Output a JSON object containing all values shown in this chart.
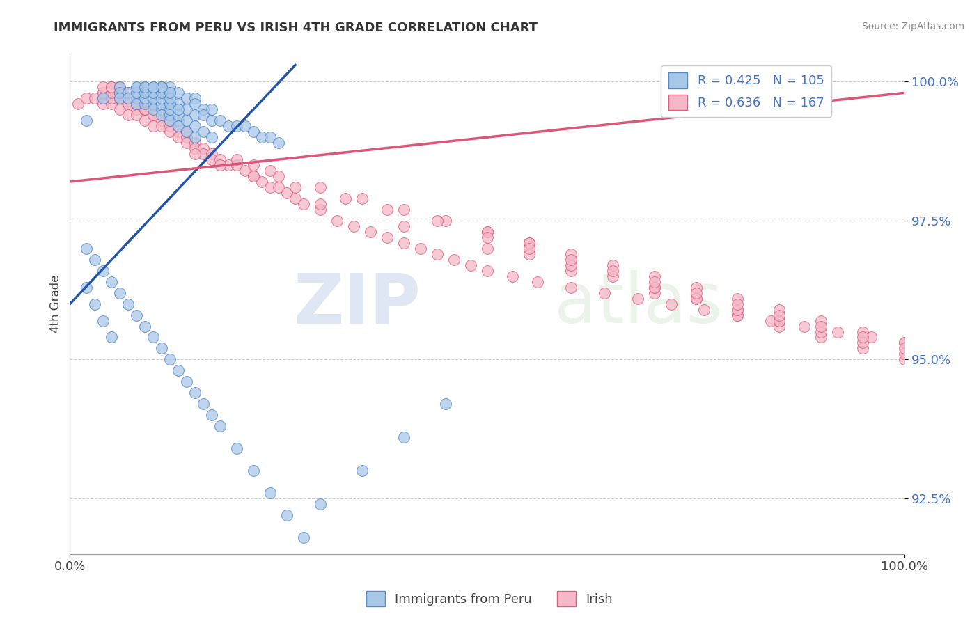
{
  "title": "IMMIGRANTS FROM PERU VS IRISH 4TH GRADE CORRELATION CHART",
  "source": "Source: ZipAtlas.com",
  "ylabel": "4th Grade",
  "xmin": 0.0,
  "xmax": 1.0,
  "ymin": 0.915,
  "ymax": 1.005,
  "yticks": [
    0.925,
    0.95,
    0.975,
    1.0
  ],
  "ytick_labels": [
    "92.5%",
    "95.0%",
    "97.5%",
    "100.0%"
  ],
  "blue_r": "0.425",
  "blue_n": "105",
  "pink_r": "0.636",
  "pink_n": "167",
  "blue_color": "#a8c8e8",
  "pink_color": "#f4b8c8",
  "blue_edge_color": "#5588cc",
  "pink_edge_color": "#e06080",
  "blue_line_color": "#2255aa",
  "pink_line_color": "#dd5577",
  "legend_label_blue": "Immigrants from Peru",
  "legend_label_pink": "Irish",
  "watermark_zip": "ZIP",
  "watermark_atlas": "atlas",
  "background_color": "#ffffff",
  "blue_scatter_x": [
    0.02,
    0.04,
    0.06,
    0.06,
    0.07,
    0.08,
    0.08,
    0.09,
    0.09,
    0.1,
    0.1,
    0.1,
    0.11,
    0.11,
    0.12,
    0.12,
    0.12,
    0.13,
    0.13,
    0.14,
    0.14,
    0.15,
    0.15,
    0.15,
    0.16,
    0.16,
    0.17,
    0.17,
    0.18,
    0.19,
    0.2,
    0.21,
    0.22,
    0.23,
    0.24,
    0.25,
    0.06,
    0.07,
    0.08,
    0.09,
    0.1,
    0.1,
    0.11,
    0.11,
    0.12,
    0.12,
    0.13,
    0.13,
    0.14,
    0.15,
    0.08,
    0.09,
    0.1,
    0.11,
    0.12,
    0.13,
    0.14,
    0.15,
    0.16,
    0.17,
    0.08,
    0.09,
    0.1,
    0.11,
    0.12,
    0.13,
    0.09,
    0.1,
    0.11,
    0.12,
    0.1,
    0.11,
    0.12,
    0.1,
    0.11,
    0.1,
    0.02,
    0.03,
    0.04,
    0.05,
    0.06,
    0.07,
    0.08,
    0.09,
    0.1,
    0.11,
    0.12,
    0.13,
    0.14,
    0.15,
    0.16,
    0.17,
    0.18,
    0.2,
    0.22,
    0.24,
    0.26,
    0.28,
    0.3,
    0.35,
    0.4,
    0.45,
    0.02,
    0.03,
    0.04,
    0.05
  ],
  "blue_scatter_y": [
    0.993,
    0.997,
    0.999,
    0.998,
    0.998,
    0.999,
    0.997,
    0.999,
    0.998,
    0.999,
    0.998,
    0.997,
    0.999,
    0.998,
    0.999,
    0.998,
    0.996,
    0.998,
    0.996,
    0.997,
    0.995,
    0.997,
    0.996,
    0.994,
    0.995,
    0.994,
    0.995,
    0.993,
    0.993,
    0.992,
    0.992,
    0.992,
    0.991,
    0.99,
    0.99,
    0.989,
    0.997,
    0.997,
    0.996,
    0.996,
    0.996,
    0.995,
    0.995,
    0.994,
    0.994,
    0.993,
    0.993,
    0.992,
    0.991,
    0.99,
    0.998,
    0.997,
    0.997,
    0.996,
    0.995,
    0.994,
    0.993,
    0.992,
    0.991,
    0.99,
    0.999,
    0.998,
    0.998,
    0.997,
    0.996,
    0.995,
    0.999,
    0.999,
    0.998,
    0.997,
    0.999,
    0.999,
    0.998,
    0.999,
    0.999,
    0.999,
    0.97,
    0.968,
    0.966,
    0.964,
    0.962,
    0.96,
    0.958,
    0.956,
    0.954,
    0.952,
    0.95,
    0.948,
    0.946,
    0.944,
    0.942,
    0.94,
    0.938,
    0.934,
    0.93,
    0.926,
    0.922,
    0.918,
    0.924,
    0.93,
    0.936,
    0.942,
    0.963,
    0.96,
    0.957,
    0.954
  ],
  "pink_scatter_x": [
    0.01,
    0.02,
    0.03,
    0.04,
    0.04,
    0.05,
    0.05,
    0.06,
    0.06,
    0.07,
    0.07,
    0.08,
    0.08,
    0.09,
    0.09,
    0.1,
    0.1,
    0.11,
    0.11,
    0.12,
    0.12,
    0.13,
    0.13,
    0.14,
    0.14,
    0.15,
    0.15,
    0.16,
    0.16,
    0.17,
    0.17,
    0.18,
    0.19,
    0.2,
    0.21,
    0.22,
    0.23,
    0.24,
    0.25,
    0.26,
    0.27,
    0.28,
    0.3,
    0.32,
    0.34,
    0.36,
    0.38,
    0.4,
    0.42,
    0.44,
    0.46,
    0.48,
    0.5,
    0.53,
    0.56,
    0.6,
    0.64,
    0.68,
    0.72,
    0.76,
    0.8,
    0.84,
    0.88,
    0.92,
    0.96,
    1.0,
    0.04,
    0.05,
    0.06,
    0.07,
    0.08,
    0.09,
    0.1,
    0.11,
    0.12,
    0.13,
    0.14,
    0.04,
    0.05,
    0.06,
    0.07,
    0.08,
    0.09,
    0.1,
    0.05,
    0.06,
    0.07,
    0.08,
    0.09,
    0.05,
    0.06,
    0.07,
    0.08,
    0.05,
    0.06,
    0.07,
    0.06,
    0.07,
    0.06,
    0.07,
    0.3,
    0.4,
    0.5,
    0.6,
    0.7,
    0.8,
    0.85,
    0.9,
    0.95,
    1.0,
    0.7,
    0.75,
    0.8,
    0.85,
    0.25,
    0.3,
    0.35,
    0.4,
    0.45,
    0.5,
    0.55,
    0.2,
    0.22,
    0.24,
    0.55,
    0.6,
    0.65,
    0.7,
    0.75,
    0.8,
    0.85,
    0.9,
    0.95,
    1.0,
    0.15,
    0.18,
    0.22,
    0.27,
    0.33,
    0.38,
    0.44,
    0.5,
    0.55,
    0.6,
    0.65,
    0.7,
    0.75,
    0.8,
    0.85,
    0.9,
    0.95,
    1.0,
    0.5,
    0.55,
    0.6,
    0.65,
    0.7,
    0.75,
    0.8,
    0.85,
    0.9,
    0.95,
    1.0
  ],
  "pink_scatter_y": [
    0.996,
    0.997,
    0.997,
    0.997,
    0.996,
    0.997,
    0.996,
    0.997,
    0.995,
    0.996,
    0.994,
    0.995,
    0.994,
    0.995,
    0.993,
    0.994,
    0.992,
    0.993,
    0.992,
    0.992,
    0.991,
    0.991,
    0.99,
    0.99,
    0.989,
    0.989,
    0.988,
    0.988,
    0.987,
    0.987,
    0.986,
    0.986,
    0.985,
    0.985,
    0.984,
    0.983,
    0.982,
    0.981,
    0.981,
    0.98,
    0.979,
    0.978,
    0.977,
    0.975,
    0.974,
    0.973,
    0.972,
    0.971,
    0.97,
    0.969,
    0.968,
    0.967,
    0.966,
    0.965,
    0.964,
    0.963,
    0.962,
    0.961,
    0.96,
    0.959,
    0.958,
    0.957,
    0.956,
    0.955,
    0.954,
    0.953,
    0.998,
    0.997,
    0.997,
    0.996,
    0.996,
    0.995,
    0.995,
    0.994,
    0.993,
    0.992,
    0.991,
    0.999,
    0.998,
    0.998,
    0.997,
    0.996,
    0.995,
    0.994,
    0.999,
    0.998,
    0.997,
    0.996,
    0.995,
    0.999,
    0.998,
    0.997,
    0.996,
    0.999,
    0.998,
    0.997,
    0.999,
    0.998,
    0.999,
    0.998,
    0.978,
    0.974,
    0.97,
    0.966,
    0.962,
    0.958,
    0.956,
    0.954,
    0.952,
    0.95,
    0.963,
    0.961,
    0.959,
    0.957,
    0.983,
    0.981,
    0.979,
    0.977,
    0.975,
    0.973,
    0.971,
    0.986,
    0.985,
    0.984,
    0.969,
    0.967,
    0.965,
    0.963,
    0.961,
    0.959,
    0.957,
    0.955,
    0.953,
    0.951,
    0.987,
    0.985,
    0.983,
    0.981,
    0.979,
    0.977,
    0.975,
    0.973,
    0.971,
    0.969,
    0.967,
    0.965,
    0.963,
    0.961,
    0.959,
    0.957,
    0.955,
    0.953,
    0.972,
    0.97,
    0.968,
    0.966,
    0.964,
    0.962,
    0.96,
    0.958,
    0.956,
    0.954,
    0.952
  ],
  "blue_trendline_x0": 0.0,
  "blue_trendline_x1": 0.27,
  "blue_trendline_y0": 0.96,
  "blue_trendline_y1": 1.003,
  "pink_trendline_x0": 0.0,
  "pink_trendline_x1": 1.0,
  "pink_trendline_y0": 0.982,
  "pink_trendline_y1": 0.998
}
